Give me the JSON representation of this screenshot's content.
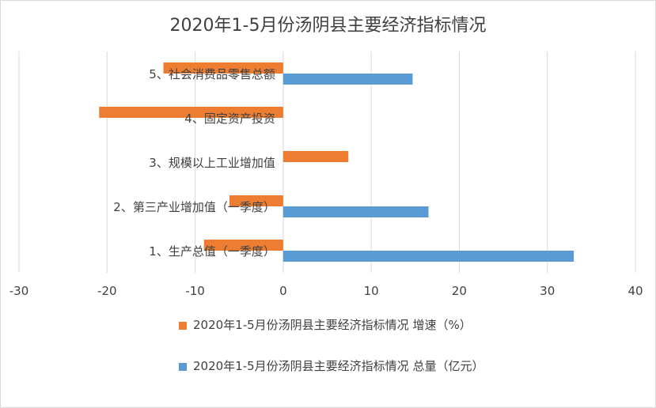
{
  "chart_data": {
    "type": "bar",
    "orientation": "horizontal",
    "title": "2020年1-5月份汤阴县主要经济指标情况",
    "categories": [
      "1、生产总值（一季度）",
      "2、第三产业增加值（一季度）",
      "3、规模以上工业增加值",
      "4、固定资产投资",
      "5、社会消费品零售总额"
    ],
    "series": [
      {
        "name": "2020年1-5月份汤阴县主要经济指标情况 增速（%）",
        "color": "#ed7d31",
        "values": [
          -9,
          -6.1,
          7.4,
          -20.9,
          -13.6
        ]
      },
      {
        "name": "2020年1-5月份汤阴县主要经济指标情况 总量（亿元）",
        "color": "#5b9bd5",
        "values": [
          33,
          16.5,
          null,
          null,
          14.7
        ]
      }
    ],
    "xlim": [
      -30,
      40
    ],
    "xticks": [
      "-30",
      "-20",
      "-10",
      "0",
      "10",
      "20",
      "30",
      "40"
    ],
    "grid": true,
    "legend_position": "bottom"
  }
}
